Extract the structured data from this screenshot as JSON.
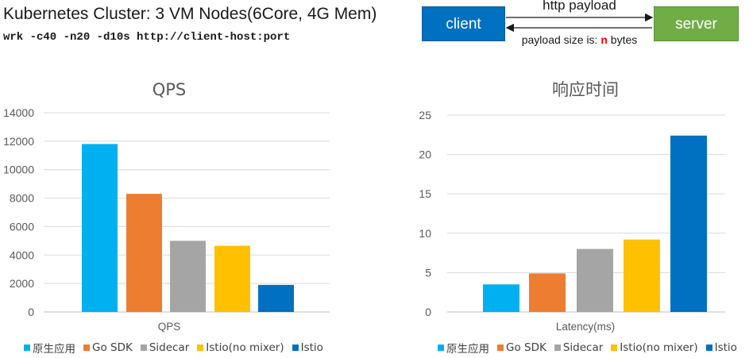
{
  "header": {
    "title": "Kubernetes Cluster: 3 VM Nodes(6Core, 4G Mem)",
    "command": "wrk -c40 -n20 -d10s http://client-host:port"
  },
  "flow": {
    "client_label": "client",
    "server_label": "server",
    "top_label": "http payload",
    "bottom_prefix": "payload size is: ",
    "bottom_n": "n",
    "bottom_suffix": " bytes"
  },
  "colors": [
    "#00b0f0",
    "#ed7d31",
    "#a5a5a5",
    "#ffc000",
    "#0070c0"
  ],
  "chart_data": [
    {
      "type": "bar",
      "title": "QPS",
      "xlabel": "QPS",
      "ylabel": "",
      "ylim": [
        0,
        14000
      ],
      "yticks": [
        0,
        2000,
        4000,
        6000,
        8000,
        10000,
        12000,
        14000
      ],
      "grid": true,
      "legend": "bottom",
      "categories": [
        "QPS"
      ],
      "series": [
        {
          "name": "原生应用",
          "values": [
            11800
          ]
        },
        {
          "name": "Go SDK",
          "values": [
            8300
          ]
        },
        {
          "name": "Sidecar",
          "values": [
            5000
          ]
        },
        {
          "name": "Istio(no mixer)",
          "values": [
            4650
          ]
        },
        {
          "name": "Istio",
          "values": [
            1900
          ]
        }
      ]
    },
    {
      "type": "bar",
      "title": "响应时间",
      "xlabel": "Latency(ms)",
      "ylabel": "",
      "ylim": [
        0,
        25
      ],
      "yticks": [
        0,
        5,
        10,
        15,
        20,
        25
      ],
      "grid": true,
      "legend": "bottom",
      "categories": [
        "Latency(ms)"
      ],
      "series": [
        {
          "name": "原生应用",
          "values": [
            3.5
          ]
        },
        {
          "name": "Go SDK",
          "values": [
            4.9
          ]
        },
        {
          "name": "Sidecar",
          "values": [
            8.0
          ]
        },
        {
          "name": "Istio(no mixer)",
          "values": [
            9.2
          ]
        },
        {
          "name": "Istio",
          "values": [
            22.4
          ]
        }
      ]
    }
  ]
}
